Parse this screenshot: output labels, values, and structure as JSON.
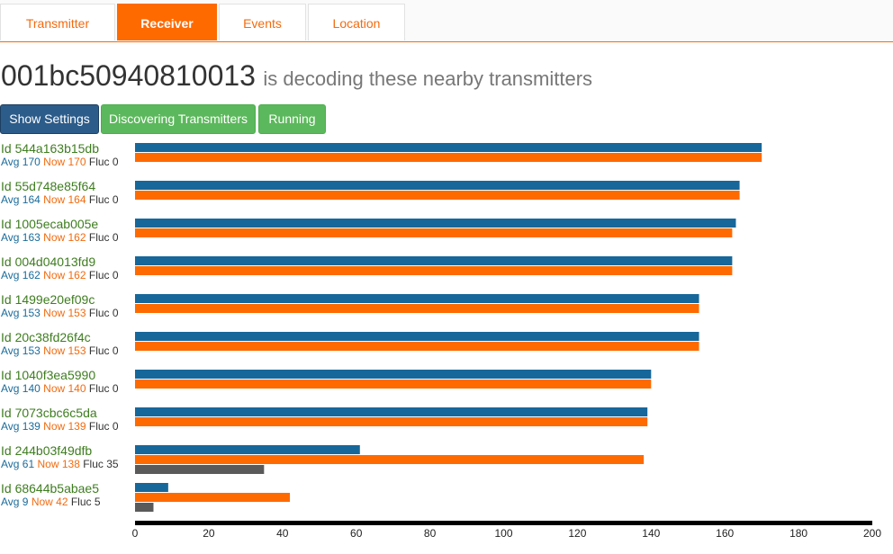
{
  "tabs": [
    {
      "label": "Transmitter",
      "active": false
    },
    {
      "label": "Receiver",
      "active": true
    },
    {
      "label": "Events",
      "active": false
    },
    {
      "label": "Location",
      "active": false
    }
  ],
  "heading": {
    "device_id": "001bc50940810013",
    "subtitle": "is decoding these nearby transmitters"
  },
  "buttons": {
    "settings": "Show Settings",
    "discovering": "Discovering Transmitters",
    "running": "Running"
  },
  "colors": {
    "avg": "#17679a",
    "now": "#ff6a00",
    "fluc": "#5a5a5a",
    "accent": "#ff6a00"
  },
  "transmitters": [
    {
      "id": "Id 544a163b15db",
      "avg_label": "Avg 170",
      "now_label": "Now 170",
      "fluc_label": "Fluc 0"
    },
    {
      "id": "Id 55d748e85f64",
      "avg_label": "Avg 164",
      "now_label": "Now 164",
      "fluc_label": "Fluc 0"
    },
    {
      "id": "Id 1005ecab005e",
      "avg_label": "Avg 163",
      "now_label": "Now 162",
      "fluc_label": "Fluc 0"
    },
    {
      "id": "Id 004d04013fd9",
      "avg_label": "Avg 162",
      "now_label": "Now 162",
      "fluc_label": "Fluc 0"
    },
    {
      "id": "Id 1499e20ef09c",
      "avg_label": "Avg 153",
      "now_label": "Now 153",
      "fluc_label": "Fluc 0"
    },
    {
      "id": "Id 20c38fd26f4c",
      "avg_label": "Avg 153",
      "now_label": "Now 153",
      "fluc_label": "Fluc 0"
    },
    {
      "id": "Id 1040f3ea5990",
      "avg_label": "Avg 140",
      "now_label": "Now 140",
      "fluc_label": "Fluc 0"
    },
    {
      "id": "Id 7073cbc6c5da",
      "avg_label": "Avg 139",
      "now_label": "Now 139",
      "fluc_label": "Fluc 0"
    },
    {
      "id": "Id 244b03f49dfb",
      "avg_label": "Avg 61",
      "now_label": "Now 138",
      "fluc_label": "Fluc 35"
    },
    {
      "id": "Id 68644b5abae5",
      "avg_label": "Avg 9",
      "now_label": "Now 42",
      "fluc_label": "Fluc 5"
    }
  ],
  "chart_data": {
    "type": "bar",
    "orientation": "horizontal",
    "categories": [
      "544a163b15db",
      "55d748e85f64",
      "1005ecab005e",
      "004d04013fd9",
      "1499e20ef09c",
      "20c38fd26f4c",
      "1040f3ea5990",
      "7073cbc6c5da",
      "244b03f49dfb",
      "68644b5abae5"
    ],
    "series": [
      {
        "name": "Avg",
        "values": [
          170,
          164,
          163,
          162,
          153,
          153,
          140,
          139,
          61,
          9
        ]
      },
      {
        "name": "Now",
        "values": [
          170,
          164,
          162,
          162,
          153,
          153,
          140,
          139,
          138,
          42
        ]
      },
      {
        "name": "Fluc",
        "values": [
          0,
          0,
          0,
          0,
          0,
          0,
          0,
          0,
          35,
          5
        ]
      }
    ],
    "xlim": [
      0,
      200
    ],
    "ticks": [
      "0",
      "20",
      "40",
      "60",
      "80",
      "100",
      "120",
      "140",
      "160",
      "180",
      "200"
    ],
    "grid": false
  }
}
